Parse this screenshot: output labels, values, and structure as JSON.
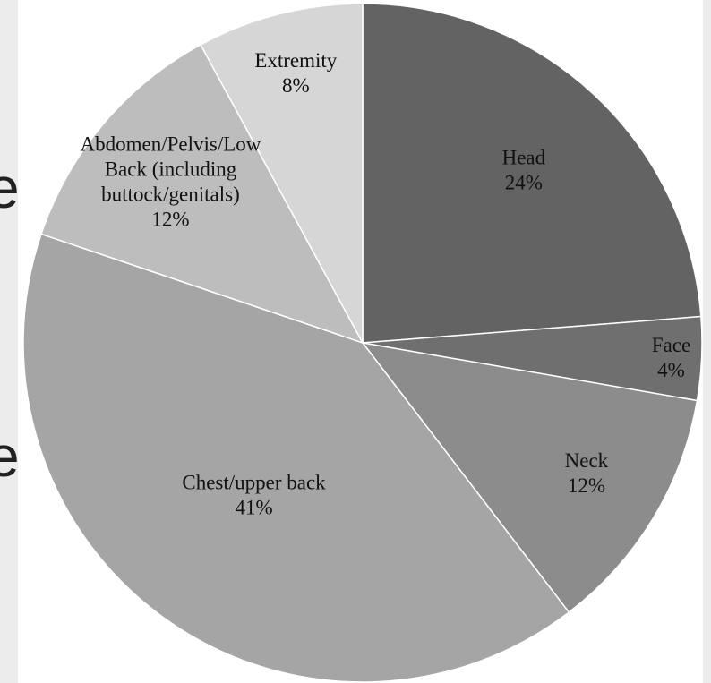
{
  "colors": {
    "page_background": "#ececec",
    "panel_background": "#ffffff",
    "slice_border": "#ffffff"
  },
  "background_text": {
    "fragment_1": "e",
    "fragment_2": "e"
  },
  "chart_data": {
    "type": "pie",
    "title": "",
    "start_angle_deg": 0,
    "direction": "clockwise",
    "slices": [
      {
        "label": "Head",
        "value": 24,
        "value_label": "24%",
        "color": "#636363"
      },
      {
        "label": "Face",
        "value": 4,
        "value_label": "4%",
        "color": "#6f6f6f"
      },
      {
        "label": "Neck",
        "value": 12,
        "value_label": "12%",
        "color": "#8c8c8c"
      },
      {
        "label": "Chest/upper back",
        "value": 41,
        "value_label": "41%",
        "color": "#a5a5a5"
      },
      {
        "label": "Abdomen/Pelvis/Low Back (including buttock/genitals)",
        "value": 12,
        "value_label": "12%",
        "color": "#bdbdbd",
        "label_lines": [
          "Abdomen/Pelvis/Low",
          "Back (including",
          "buttock/genitals)"
        ]
      },
      {
        "label": "Extremity",
        "value": 8,
        "value_label": "8%",
        "color": "#d6d6d6"
      }
    ]
  }
}
